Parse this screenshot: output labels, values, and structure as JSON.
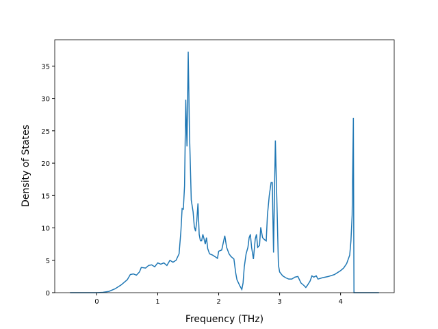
{
  "chart_data": {
    "type": "line",
    "xlabel": "Frequency (THz)",
    "ylabel": "Density of States",
    "xlim": [
      -0.69,
      4.88
    ],
    "ylim": [
      0,
      39.06
    ],
    "xticks": [
      0,
      1,
      2,
      3,
      4
    ],
    "yticks": [
      0,
      5,
      10,
      15,
      20,
      25,
      30,
      35
    ],
    "series": [
      {
        "color": "#1f77b4",
        "x": [
          -0.44,
          0.0,
          0.1,
          0.2,
          0.3,
          0.4,
          0.5,
          0.55,
          0.6,
          0.65,
          0.7,
          0.73,
          0.8,
          0.85,
          0.9,
          0.95,
          1.0,
          1.05,
          1.1,
          1.15,
          1.2,
          1.25,
          1.3,
          1.35,
          1.38,
          1.4,
          1.42,
          1.44,
          1.46,
          1.48,
          1.5,
          1.52,
          1.55,
          1.58,
          1.6,
          1.62,
          1.64,
          1.66,
          1.68,
          1.7,
          1.72,
          1.74,
          1.76,
          1.78,
          1.8,
          1.82,
          1.85,
          1.9,
          1.95,
          1.98,
          2.0,
          2.05,
          2.1,
          2.13,
          2.17,
          2.2,
          2.25,
          2.28,
          2.3,
          2.35,
          2.38,
          2.4,
          2.42,
          2.45,
          2.48,
          2.5,
          2.52,
          2.54,
          2.57,
          2.6,
          2.62,
          2.64,
          2.67,
          2.69,
          2.72,
          2.75,
          2.78,
          2.8,
          2.83,
          2.86,
          2.88,
          2.9,
          2.93,
          2.95,
          2.98,
          3.0,
          3.05,
          3.1,
          3.15,
          3.2,
          3.25,
          3.3,
          3.35,
          3.4,
          3.43,
          3.46,
          3.5,
          3.53,
          3.56,
          3.6,
          3.63,
          3.7,
          3.8,
          3.9,
          4.0,
          4.05,
          4.1,
          4.15,
          4.17,
          4.19,
          4.21,
          4.22,
          4.63
        ],
        "values": [
          0,
          0,
          0.05,
          0.2,
          0.6,
          1.2,
          2.0,
          2.8,
          2.9,
          2.7,
          3.2,
          3.9,
          3.8,
          4.2,
          4.3,
          4.0,
          4.6,
          4.4,
          4.6,
          4.2,
          5.0,
          4.7,
          5.0,
          6.0,
          9.5,
          13.0,
          12.9,
          16.5,
          29.8,
          22.6,
          37.2,
          25,
          14.3,
          12.5,
          10.2,
          9.5,
          11,
          13.8,
          9,
          8,
          8,
          9,
          8.3,
          7.5,
          8.5,
          6.8,
          6.0,
          5.8,
          5.5,
          5.3,
          6.4,
          6.6,
          8.8,
          7,
          6,
          5.6,
          5.2,
          3,
          2,
          1,
          0.5,
          1.5,
          4,
          6,
          7,
          8.5,
          9,
          7,
          5.2,
          8.3,
          9,
          7,
          7.3,
          10.1,
          8.5,
          8.2,
          8,
          12,
          15,
          17,
          17,
          6.2,
          23.5,
          16,
          4.3,
          3.2,
          2.6,
          2.3,
          2.1,
          2.1,
          2.4,
          2.5,
          1.5,
          1.1,
          0.8,
          1.2,
          1.8,
          2.6,
          2.4,
          2.6,
          2.1,
          2.3,
          2.5,
          2.8,
          3.4,
          3.8,
          4.5,
          5.8,
          8,
          12,
          27,
          0,
          0
        ]
      }
    ]
  }
}
